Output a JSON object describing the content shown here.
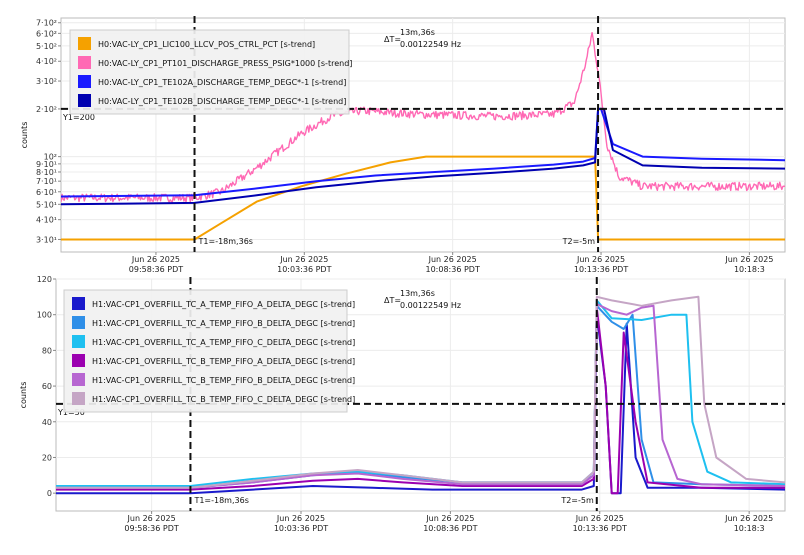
{
  "chart_data": [
    {
      "type": "line",
      "yscale": "log",
      "ylabel": "counts",
      "ylim": [
        25,
        750
      ],
      "yticks": [
        {
          "v": 30,
          "label": "3·10¹"
        },
        {
          "v": 40,
          "label": "4·10¹"
        },
        {
          "v": 50,
          "label": "5·10¹"
        },
        {
          "v": 60,
          "label": "6·10¹"
        },
        {
          "v": 70,
          "label": "7·10¹"
        },
        {
          "v": 80,
          "label": "8·10¹"
        },
        {
          "v": 90,
          "label": "9·10¹"
        },
        {
          "v": 100,
          "label": "10²"
        },
        {
          "v": 200,
          "label": "2·10²"
        },
        {
          "v": 300,
          "label": "3·10²"
        },
        {
          "v": 400,
          "label": "4·10²"
        },
        {
          "v": 500,
          "label": "5·10²"
        },
        {
          "v": 600,
          "label": "6·10²"
        },
        {
          "v": 700,
          "label": "7·10²"
        }
      ],
      "xlim": [
        -22.6,
        1.8
      ],
      "xticks": [
        {
          "v": -19.4,
          "line1": "Jun 26 2025",
          "line2": "09:58:36 PDT"
        },
        {
          "v": -14.4,
          "line1": "Jun 26 2025",
          "line2": "10:03:36 PDT"
        },
        {
          "v": -9.4,
          "line1": "Jun 26 2025",
          "line2": "10:08:36 PDT"
        },
        {
          "v": -4.4,
          "line1": "Jun 26 2025",
          "line2": "10:13:36 PDT"
        },
        {
          "v": 0.6,
          "line1": "Jun 26 2025",
          "line2": "10:18:3"
        }
      ],
      "series": [
        {
          "name": "H0:VAC-LY_CP1_LIC100_LLCV_POS_CTRL_PCT [s-trend]",
          "color": "#f5a100",
          "points": [
            [
              -22.6,
              30
            ],
            [
              -18.1,
              30
            ],
            [
              -17.2,
              38
            ],
            [
              -16,
              52
            ],
            [
              -14.5,
              65
            ],
            [
              -13,
              78
            ],
            [
              -11.5,
              92
            ],
            [
              -10.3,
              100
            ],
            [
              -4.6,
              100
            ],
            [
              -4.5,
              30
            ],
            [
              1.8,
              30
            ]
          ]
        },
        {
          "name": "H0:VAC-LY_CP1_PT101_DISCHARGE_PRESS_PSIG*1000 [s-trend]",
          "color": "#ff69b4",
          "noise": true,
          "points": [
            [
              -22.6,
              55
            ],
            [
              -18.1,
              55
            ],
            [
              -17.2,
              60
            ],
            [
              -16,
              85
            ],
            [
              -14.5,
              140
            ],
            [
              -13.5,
              180
            ],
            [
              -12.5,
              195
            ],
            [
              -10.5,
              185
            ],
            [
              -8,
              180
            ],
            [
              -6,
              185
            ],
            [
              -5.3,
              220
            ],
            [
              -4.9,
              400
            ],
            [
              -4.7,
              600
            ],
            [
              -4.5,
              350
            ],
            [
              -4.2,
              120
            ],
            [
              -3.8,
              75
            ],
            [
              -3,
              65
            ],
            [
              -1,
              65
            ],
            [
              1.8,
              65
            ]
          ]
        },
        {
          "name": "H0:VAC-LY_CP1_TE102A_DISCHARGE_TEMP_DEGC*-1 [s-trend]",
          "color": "#1a1aff",
          "points": [
            [
              -22.6,
              56
            ],
            [
              -18.1,
              57
            ],
            [
              -16,
              63
            ],
            [
              -14,
              70
            ],
            [
              -12,
              76
            ],
            [
              -10,
              80
            ],
            [
              -8,
              84
            ],
            [
              -6,
              89
            ],
            [
              -5,
              93
            ],
            [
              -4.6,
              98
            ],
            [
              -4.5,
              200
            ],
            [
              -4.4,
              200
            ],
            [
              -4,
              120
            ],
            [
              -3,
              100
            ],
            [
              -1,
              97
            ],
            [
              1.8,
              95
            ]
          ]
        },
        {
          "name": "H0:VAC-LY_CP1_TE102B_DISCHARGE_TEMP_DEGC*-1 [s-trend]",
          "color": "#0000b0",
          "points": [
            [
              -22.6,
              50
            ],
            [
              -18.1,
              51
            ],
            [
              -16,
              57
            ],
            [
              -14,
              64
            ],
            [
              -12,
              70
            ],
            [
              -10,
              75
            ],
            [
              -8,
              79
            ],
            [
              -6,
              84
            ],
            [
              -5,
              88
            ],
            [
              -4.6,
              92
            ],
            [
              -4.5,
              200
            ],
            [
              -4.3,
              200
            ],
            [
              -4,
              110
            ],
            [
              -3,
              88
            ],
            [
              -1,
              85
            ],
            [
              1.8,
              84
            ]
          ]
        }
      ],
      "cursor_y": {
        "value": 200,
        "label": "Y1=200"
      },
      "cursors_x": [
        {
          "v": -18.1,
          "label": "T1=-18m,36s"
        },
        {
          "v": -4.5,
          "label": "T2=-5m"
        }
      ],
      "delta": {
        "symbol": "ΔT=",
        "line1": "13m,36s",
        "line2": "0.00122549 Hz"
      }
    },
    {
      "type": "line",
      "yscale": "linear",
      "ylabel": "counts",
      "ylim": [
        -10,
        120
      ],
      "yticks": [
        {
          "v": 0,
          "label": "0"
        },
        {
          "v": 20,
          "label": "20"
        },
        {
          "v": 40,
          "label": "40"
        },
        {
          "v": 60,
          "label": "60"
        },
        {
          "v": 80,
          "label": "80"
        },
        {
          "v": 100,
          "label": "100"
        },
        {
          "v": 120,
          "label": "120"
        }
      ],
      "xlim": [
        -22.6,
        1.8
      ],
      "xticks": [
        {
          "v": -19.4,
          "line1": "Jun 26 2025",
          "line2": "09:58:36 PDT"
        },
        {
          "v": -14.4,
          "line1": "Jun 26 2025",
          "line2": "10:03:36 PDT"
        },
        {
          "v": -9.4,
          "line1": "Jun 26 2025",
          "line2": "10:08:36 PDT"
        },
        {
          "v": -4.4,
          "line1": "Jun 26 2025",
          "line2": "10:13:36 PDT"
        },
        {
          "v": 0.6,
          "line1": "Jun 26 2025",
          "line2": "10:18:3"
        }
      ],
      "series": [
        {
          "name": "H1:VAC-CP1_OVERFILL_TC_A_TEMP_FIFO_A_DELTA_DEGC [s-trend]",
          "color": "#1a1acc",
          "points": [
            [
              -22.6,
              0
            ],
            [
              -18.1,
              0
            ],
            [
              -16,
              2
            ],
            [
              -14,
              4
            ],
            [
              -12,
              3
            ],
            [
              -10,
              2
            ],
            [
              -5,
              2
            ],
            [
              -4.6,
              4
            ],
            [
              -4.5,
              100
            ],
            [
              -4.2,
              60
            ],
            [
              -4,
              0
            ],
            [
              -3.7,
              0
            ],
            [
              -3.5,
              95
            ],
            [
              -3.2,
              20
            ],
            [
              -2.8,
              3
            ],
            [
              -1,
              3
            ],
            [
              1.8,
              2
            ]
          ]
        },
        {
          "name": "H1:VAC-CP1_OVERFILL_TC_A_TEMP_FIFO_B_DELTA_DEGC [s-trend]",
          "color": "#2f8fe8",
          "points": [
            [
              -22.6,
              3
            ],
            [
              -18.1,
              3
            ],
            [
              -16,
              6
            ],
            [
              -14,
              10
            ],
            [
              -12.5,
              12
            ],
            [
              -11,
              9
            ],
            [
              -9,
              6
            ],
            [
              -5,
              6
            ],
            [
              -4.6,
              10
            ],
            [
              -4.5,
              105
            ],
            [
              -4,
              96
            ],
            [
              -3.6,
              92
            ],
            [
              -3.3,
              100
            ],
            [
              -3,
              30
            ],
            [
              -2.6,
              6
            ],
            [
              -1,
              5
            ],
            [
              1.8,
              4
            ]
          ]
        },
        {
          "name": "H1:VAC-CP1_OVERFILL_TC_A_TEMP_FIFO_C_DELTA_DEGC [s-trend]",
          "color": "#1ec0f0",
          "points": [
            [
              -22.6,
              4
            ],
            [
              -18.1,
              4
            ],
            [
              -16,
              8
            ],
            [
              -14,
              11
            ],
            [
              -12.5,
              12
            ],
            [
              -11,
              10
            ],
            [
              -9,
              6
            ],
            [
              -5,
              6
            ],
            [
              -4.6,
              12
            ],
            [
              -4.5,
              108
            ],
            [
              -4,
              98
            ],
            [
              -3,
              97
            ],
            [
              -2,
              100
            ],
            [
              -1.5,
              100
            ],
            [
              -1.3,
              40
            ],
            [
              -0.8,
              12
            ],
            [
              0,
              6
            ],
            [
              1.8,
              5
            ]
          ]
        },
        {
          "name": "H1:VAC-CP1_OVERFILL_TC_B_TEMP_FIFO_A_DELTA_DEGC [s-trend]",
          "color": "#9b00b0",
          "points": [
            [
              -22.6,
              2
            ],
            [
              -18.1,
              2
            ],
            [
              -16,
              4
            ],
            [
              -14,
              7
            ],
            [
              -12.5,
              8
            ],
            [
              -11,
              6
            ],
            [
              -9,
              4
            ],
            [
              -5,
              4
            ],
            [
              -4.6,
              8
            ],
            [
              -4.5,
              104
            ],
            [
              -4.2,
              60
            ],
            [
              -4,
              0
            ],
            [
              -3.8,
              0
            ],
            [
              -3.6,
              90
            ],
            [
              -3.2,
              40
            ],
            [
              -2.8,
              6
            ],
            [
              -1,
              3
            ],
            [
              1.8,
              3
            ]
          ]
        },
        {
          "name": "H1:VAC-CP1_OVERFILL_TC_B_TEMP_FIFO_B_DELTA_DEGC [s-trend]",
          "color": "#b766d1",
          "points": [
            [
              -22.6,
              3
            ],
            [
              -18.1,
              3
            ],
            [
              -16,
              6
            ],
            [
              -14,
              10
            ],
            [
              -12.5,
              11
            ],
            [
              -11,
              8
            ],
            [
              -9,
              5
            ],
            [
              -5,
              5
            ],
            [
              -4.6,
              10
            ],
            [
              -4.5,
              106
            ],
            [
              -4,
              102
            ],
            [
              -3.5,
              100
            ],
            [
              -3,
              104
            ],
            [
              -2.6,
              105
            ],
            [
              -2.3,
              30
            ],
            [
              -1.8,
              8
            ],
            [
              -1,
              5
            ],
            [
              1.8,
              4
            ]
          ]
        },
        {
          "name": "H1:VAC-CP1_OVERFILL_TC_B_TEMP_FIFO_C_DELTA_DEGC [s-trend]",
          "color": "#c5a5c5",
          "points": [
            [
              -22.6,
              3
            ],
            [
              -18.1,
              3
            ],
            [
              -16,
              7
            ],
            [
              -14,
              11
            ],
            [
              -12.5,
              13
            ],
            [
              -11,
              10
            ],
            [
              -9,
              6
            ],
            [
              -5,
              6
            ],
            [
              -4.6,
              12
            ],
            [
              -4.5,
              110
            ],
            [
              -4,
              108
            ],
            [
              -3,
              105
            ],
            [
              -2,
              108
            ],
            [
              -1.1,
              110
            ],
            [
              -0.9,
              50
            ],
            [
              -0.5,
              20
            ],
            [
              0.5,
              8
            ],
            [
              1.8,
              6
            ]
          ]
        }
      ],
      "cursor_y": {
        "value": 50,
        "label": "Y1=50"
      },
      "cursors_x": [
        {
          "v": -18.1,
          "label": "T1=-18m,36s"
        },
        {
          "v": -4.5,
          "label": "T2=-5m"
        }
      ],
      "delta": {
        "symbol": "ΔT=",
        "line1": "13m,36s",
        "line2": "0.00122549 Hz"
      }
    }
  ]
}
